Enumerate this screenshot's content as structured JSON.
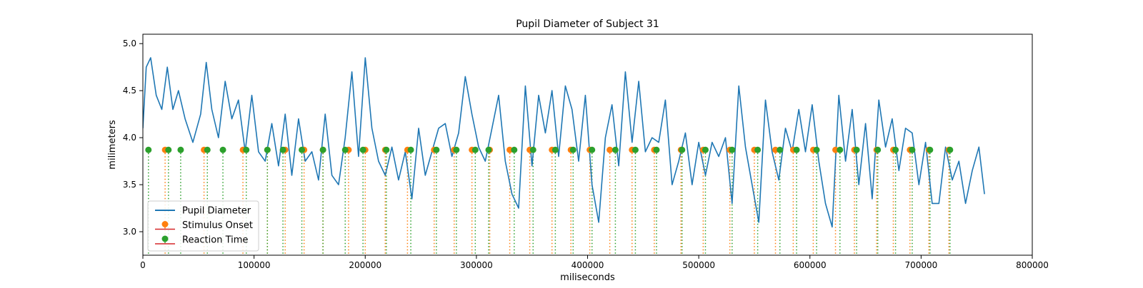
{
  "chart_data": {
    "type": "line",
    "title": "Pupil Diameter of Subject 31",
    "xlabel": "miliseconds",
    "ylabel": "milimeters",
    "xlim": [
      0,
      800000
    ],
    "ylim": [
      2.75,
      5.1
    ],
    "x_ticks": [
      0,
      100000,
      200000,
      300000,
      400000,
      500000,
      600000,
      700000,
      800000
    ],
    "x_tick_labels": [
      "0",
      "100000",
      "200000",
      "300000",
      "400000",
      "500000",
      "600000",
      "700000",
      "800000"
    ],
    "y_ticks": [
      3.0,
      3.5,
      4.0,
      4.5,
      5.0
    ],
    "y_tick_labels": [
      "3.0",
      "3.5",
      "4.0",
      "4.5",
      "5.0"
    ],
    "grid": false,
    "legend_position": "lower-left",
    "marker_y": 3.87,
    "legend": [
      {
        "label": "Pupil Diameter",
        "kind": "line",
        "color": "#1f77b4"
      },
      {
        "label": "Stimulus Onset",
        "kind": "stem",
        "color": "#ff7f0e",
        "base_color": "#d62728"
      },
      {
        "label": "Reaction Time",
        "kind": "stem",
        "color": "#2ca02c",
        "base_color": "#d62728"
      }
    ],
    "series": [
      {
        "name": "Pupil Diameter",
        "color": "#1f77b4",
        "x": [
          0,
          3000,
          7000,
          12000,
          17000,
          22000,
          27000,
          32000,
          38000,
          45000,
          52000,
          57000,
          62000,
          68000,
          74000,
          80000,
          86000,
          92000,
          98000,
          104000,
          110000,
          116000,
          122000,
          128000,
          134000,
          140000,
          146000,
          152000,
          158000,
          164000,
          170000,
          176000,
          182000,
          188000,
          194000,
          200000,
          206000,
          212000,
          218000,
          224000,
          230000,
          236000,
          242000,
          248000,
          254000,
          260000,
          266000,
          272000,
          278000,
          284000,
          290000,
          296000,
          302000,
          308000,
          314000,
          320000,
          326000,
          332000,
          338000,
          344000,
          350000,
          356000,
          362000,
          368000,
          374000,
          380000,
          386000,
          392000,
          398000,
          404000,
          410000,
          416000,
          422000,
          428000,
          434000,
          440000,
          446000,
          452000,
          458000,
          464000,
          470000,
          476000,
          482000,
          488000,
          494000,
          500000,
          506000,
          512000,
          518000,
          524000,
          530000,
          536000,
          542000,
          548000,
          554000,
          560000,
          566000,
          572000,
          578000,
          584000,
          590000,
          596000,
          602000,
          608000,
          614000,
          620000,
          626000,
          632000,
          638000,
          644000,
          650000,
          656000,
          662000,
          668000,
          674000,
          680000,
          686000,
          692000,
          698000,
          704000,
          710000,
          716000,
          722000,
          728000,
          734000,
          740000,
          746000,
          752000,
          757000
        ],
        "values": [
          4.1,
          4.75,
          4.85,
          4.45,
          4.3,
          4.75,
          4.3,
          4.5,
          4.2,
          3.95,
          4.25,
          4.8,
          4.3,
          4.0,
          4.6,
          4.2,
          4.4,
          3.85,
          4.45,
          3.85,
          3.75,
          4.15,
          3.7,
          4.25,
          3.6,
          4.2,
          3.75,
          3.85,
          3.55,
          4.25,
          3.6,
          3.5,
          4.0,
          4.7,
          3.8,
          4.85,
          4.1,
          3.75,
          3.6,
          3.9,
          3.55,
          3.85,
          3.35,
          4.1,
          3.6,
          3.85,
          4.1,
          4.15,
          3.8,
          4.05,
          4.65,
          4.25,
          3.9,
          3.75,
          4.1,
          4.45,
          3.75,
          3.4,
          3.25,
          4.55,
          3.7,
          4.45,
          4.05,
          4.5,
          3.8,
          4.55,
          4.3,
          3.75,
          4.45,
          3.5,
          3.1,
          4.0,
          4.35,
          3.7,
          4.7,
          3.95,
          4.6,
          3.85,
          4.0,
          3.95,
          4.4,
          3.5,
          3.75,
          4.05,
          3.5,
          3.95,
          3.6,
          3.95,
          3.8,
          4.0,
          3.3,
          4.55,
          3.9,
          3.5,
          3.1,
          4.4,
          3.85,
          3.55,
          4.1,
          3.85,
          4.3,
          3.85,
          4.35,
          3.75,
          3.3,
          3.05,
          4.45,
          3.75,
          4.3,
          3.5,
          4.15,
          3.35,
          4.4,
          3.9,
          4.2,
          3.65,
          4.1,
          4.05,
          3.5,
          3.95,
          3.3,
          3.3,
          3.9,
          3.55,
          3.75,
          3.3,
          3.65,
          3.9,
          3.4
        ]
      }
    ],
    "stimulus_onset_x": [
      20000,
      55000,
      90000,
      112000,
      128000,
      145000,
      162000,
      185000,
      200000,
      218000,
      238000,
      262000,
      280000,
      296000,
      312000,
      330000,
      348000,
      368000,
      385000,
      402000,
      420000,
      440000,
      460000,
      484000,
      504000,
      528000,
      550000,
      569000,
      585000,
      603000,
      623000,
      640000,
      660000,
      675000,
      690000,
      707000,
      725000
    ],
    "reaction_time_x": [
      5000,
      23000,
      34000,
      58000,
      72000,
      93000,
      112000,
      126000,
      143000,
      162000,
      182000,
      198000,
      219000,
      241000,
      264000,
      282000,
      299000,
      311000,
      334000,
      351000,
      371000,
      387000,
      404000,
      425000,
      443000,
      462000,
      485000,
      506000,
      530000,
      553000,
      573000,
      588000,
      606000,
      627000,
      642000,
      661000,
      677000,
      692000,
      708000,
      726000
    ]
  }
}
